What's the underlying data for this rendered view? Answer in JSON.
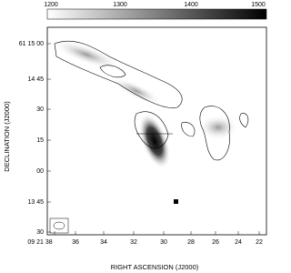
{
  "colorbar": {
    "ticks": [
      "1200",
      "1300",
      "1400",
      "1500"
    ]
  },
  "x_axis": {
    "label": "RIGHT ASCENSION (J2000)",
    "ticks": [
      "09 21 38",
      "36",
      "34",
      "32",
      "30",
      "28",
      "26",
      "24",
      "22"
    ]
  },
  "y_axis": {
    "label": "DECLINATION (J2000)",
    "ticks": [
      "61 15 00",
      "14 45",
      "30",
      "15",
      "00",
      "13 45",
      "30"
    ]
  }
}
